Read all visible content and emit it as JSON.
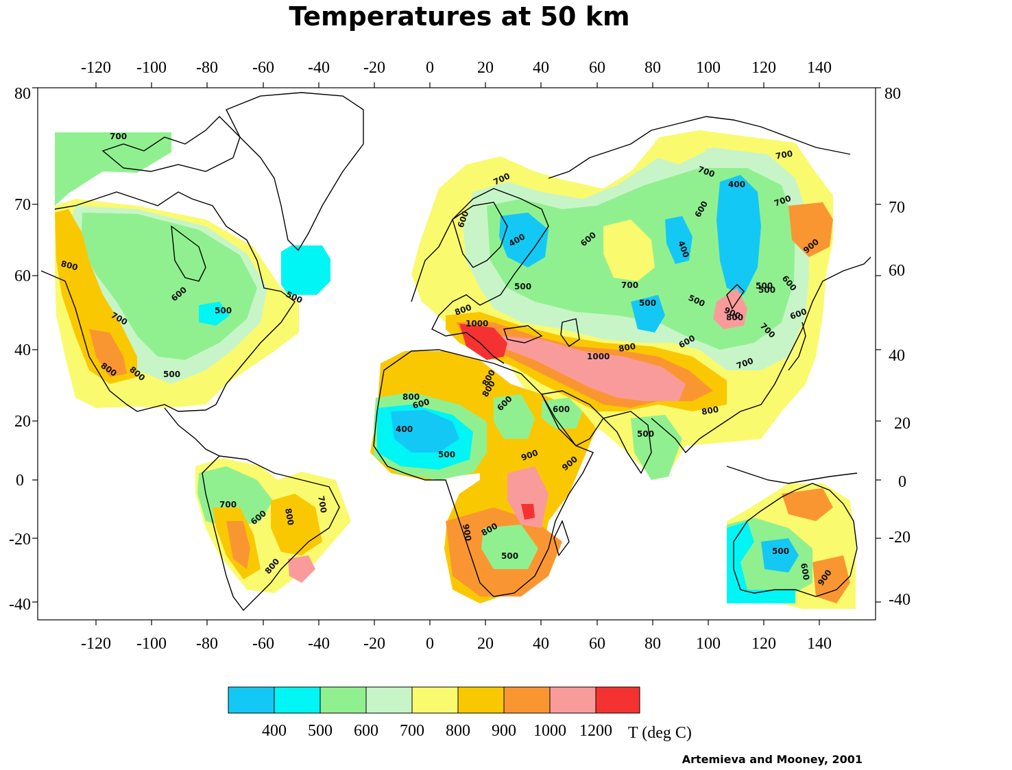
{
  "title": "Temperatures at 50 km",
  "credit": "Artemieva and Mooney, 2001",
  "axes": {
    "lon_ticks": [
      "-120",
      "-100",
      "-80",
      "-60",
      "-40",
      "-20",
      "0",
      "20",
      "40",
      "60",
      "80",
      "100",
      "120",
      "140"
    ],
    "lat_ticks": [
      "80",
      "70",
      "60",
      "40",
      "20",
      "0",
      "-20",
      "-40"
    ]
  },
  "legend": {
    "unit": "T (deg C)",
    "labels": [
      "400",
      "500",
      "600",
      "700",
      "800",
      "900",
      "1000",
      "1200"
    ],
    "colors": [
      "#14c8f5",
      "#00f5f5",
      "#90f090",
      "#c8f5c8",
      "#fafa6e",
      "#fac800",
      "#fa9632",
      "#fa9b9b",
      "#f53232"
    ]
  },
  "contour_labels": [
    "700",
    "600",
    "400",
    "500",
    "600",
    "700",
    "400",
    "600",
    "400",
    "700",
    "700",
    "900",
    "600",
    "800",
    "500",
    "700",
    "500",
    "500",
    "500",
    "600",
    "800",
    "700",
    "600",
    "500",
    "800",
    "600",
    "700",
    "500",
    "700",
    "900",
    "800",
    "1000",
    "800",
    "1000",
    "800",
    "600",
    "400",
    "500",
    "600",
    "800",
    "600",
    "900",
    "900",
    "500",
    "800",
    "900",
    "500",
    "600",
    "800",
    "900",
    "700",
    "600",
    "800",
    "800",
    "700",
    "500",
    "800",
    "500",
    "700",
    "800"
  ]
}
